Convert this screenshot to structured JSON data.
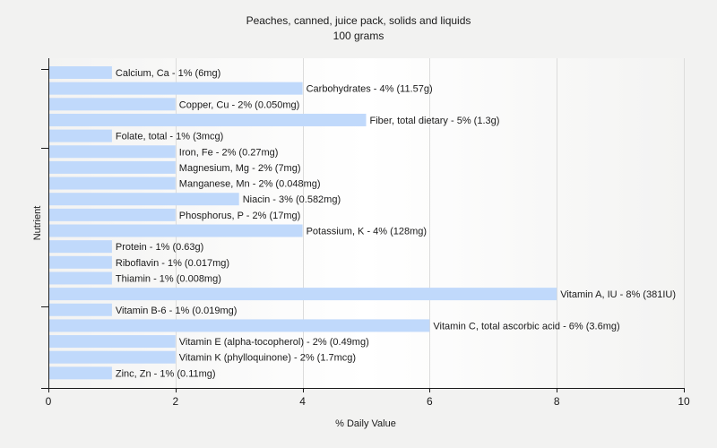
{
  "chart_data": {
    "type": "bar",
    "orientation": "horizontal",
    "title": "Peaches, canned, juice pack, solids and liquids",
    "subtitle": "100 grams",
    "xlabel": "% Daily Value",
    "ylabel": "Nutrient",
    "xlim": [
      0,
      10
    ],
    "xticks": [
      0,
      2,
      4,
      6,
      8,
      10
    ],
    "grid": true,
    "bar_color": "#c0d9fb",
    "categories": [
      "Calcium, Ca",
      "Carbohydrates",
      "Copper, Cu",
      "Fiber, total dietary",
      "Folate, total",
      "Iron, Fe",
      "Magnesium, Mg",
      "Manganese, Mn",
      "Niacin",
      "Phosphorus, P",
      "Potassium, K",
      "Protein",
      "Riboflavin",
      "Thiamin",
      "Vitamin A, IU",
      "Vitamin B-6",
      "Vitamin C, total ascorbic acid",
      "Vitamin E (alpha-tocopherol)",
      "Vitamin K (phylloquinone)",
      "Zinc, Zn"
    ],
    "values": [
      1,
      4,
      2,
      5,
      1,
      2,
      2,
      2,
      3,
      2,
      4,
      1,
      1,
      1,
      8,
      1,
      6,
      2,
      2,
      1
    ],
    "labels": [
      "Calcium, Ca - 1% (6mg)",
      "Carbohydrates - 4% (11.57g)",
      "Copper, Cu - 2% (0.050mg)",
      "Fiber, total dietary - 5% (1.3g)",
      "Folate, total - 1% (3mcg)",
      "Iron, Fe - 2% (0.27mg)",
      "Magnesium, Mg - 2% (7mg)",
      "Manganese, Mn - 2% (0.048mg)",
      "Niacin - 3% (0.582mg)",
      "Phosphorus, P - 2% (17mg)",
      "Potassium, K - 4% (128mg)",
      "Protein - 1% (0.63g)",
      "Riboflavin - 1% (0.017mg)",
      "Thiamin - 1% (0.008mg)",
      "Vitamin A, IU - 8% (381IU)",
      "Vitamin B-6 - 1% (0.019mg)",
      "Vitamin C, total ascorbic acid - 6% (3.6mg)",
      "Vitamin E (alpha-tocopherol) - 2% (0.49mg)",
      "Vitamin K (phylloquinone) - 2% (1.7mcg)",
      "Zinc, Zn - 1% (0.11mg)"
    ]
  }
}
